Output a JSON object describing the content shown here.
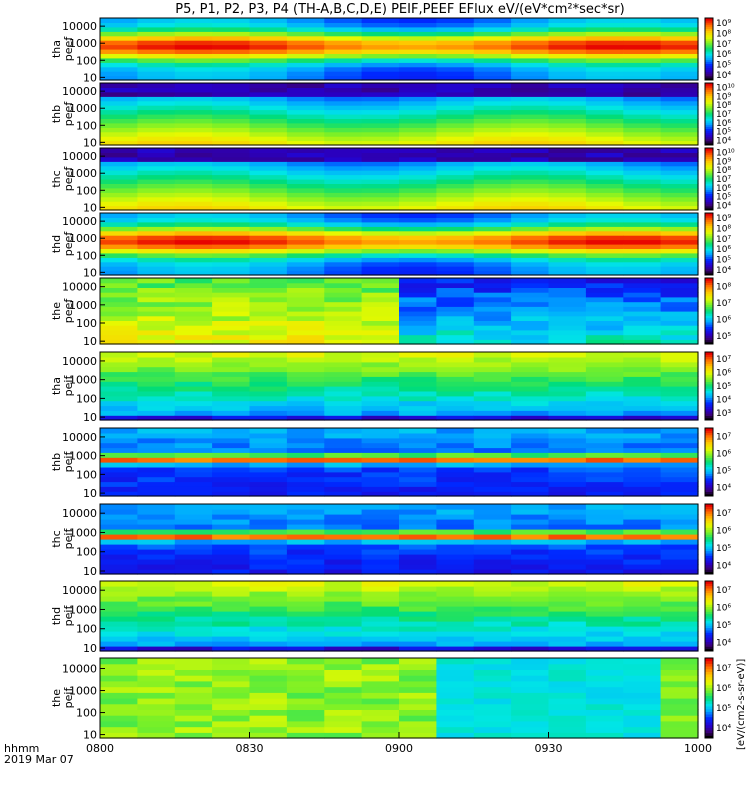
{
  "title": "P5, P1, P2, P3, P4 (TH-A,B,C,D,E) PEIF,PEEF EFlux eV/(eV*cm²*sec*sr)",
  "x_axis": {
    "label_line1": "hhmm",
    "label_line2": "2019 Mar 07",
    "ticks": [
      "0800",
      "0830",
      "0900",
      "0930",
      "1000"
    ]
  },
  "colorbar_label": "[eV/(cm2-s-sr-eV)]",
  "chart_data": [
    {
      "type": "heatmap",
      "ylabel": "tha\npeef",
      "yticks": [
        "10",
        "100",
        "1000",
        "10000"
      ],
      "ylim": [
        7,
        30000
      ],
      "y_scale": "log",
      "cbar_ticks": [
        "10⁴",
        "10⁵",
        "10⁶",
        "10⁷",
        "10⁸",
        "10⁹"
      ],
      "profile": "peef_hot",
      "values_note": "log10 EFlux"
    },
    {
      "type": "heatmap",
      "ylabel": "thb\npeef",
      "yticks": [
        "10",
        "100",
        "1000",
        "10000"
      ],
      "ylim": [
        7,
        30000
      ],
      "y_scale": "log",
      "cbar_ticks": [
        "10⁴",
        "10⁵",
        "10⁶",
        "10⁷",
        "10⁸",
        "10⁹",
        "10¹⁰"
      ],
      "profile": "peef_cold"
    },
    {
      "type": "heatmap",
      "ylabel": "thc\npeef",
      "yticks": [
        "10",
        "100",
        "1000",
        "10000"
      ],
      "ylim": [
        7,
        30000
      ],
      "y_scale": "log",
      "cbar_ticks": [
        "10⁴",
        "10⁵",
        "10⁶",
        "10⁷",
        "10⁸",
        "10⁹",
        "10¹⁰"
      ],
      "profile": "peef_cold"
    },
    {
      "type": "heatmap",
      "ylabel": "thd\npeef",
      "yticks": [
        "10",
        "100",
        "1000",
        "10000"
      ],
      "ylim": [
        7,
        30000
      ],
      "y_scale": "log",
      "cbar_ticks": [
        "10⁴",
        "10⁵",
        "10⁶",
        "10⁷",
        "10⁸",
        "10⁹"
      ],
      "profile": "peef_hot"
    },
    {
      "type": "heatmap",
      "ylabel": "the\npeef",
      "yticks": [
        "10",
        "100",
        "1000",
        "10000"
      ],
      "ylim": [
        7,
        30000
      ],
      "y_scale": "log",
      "cbar_ticks": [
        "10⁵",
        "10⁶",
        "10⁷",
        "10⁸"
      ],
      "profile": "peef_mixed"
    },
    {
      "type": "heatmap",
      "ylabel": "tha\npeif",
      "yticks": [
        "10",
        "100",
        "1000",
        "10000"
      ],
      "ylim": [
        7,
        30000
      ],
      "y_scale": "log",
      "cbar_ticks": [
        "10³",
        "10⁴",
        "10⁵",
        "10⁶",
        "10⁷"
      ],
      "profile": "peif_warm"
    },
    {
      "type": "heatmap",
      "ylabel": "thb\npeif",
      "yticks": [
        "10",
        "100",
        "1000",
        "10000"
      ],
      "ylim": [
        7,
        30000
      ],
      "y_scale": "log",
      "cbar_ticks": [
        "10⁴",
        "10⁵",
        "10⁶",
        "10⁷"
      ],
      "profile": "peif_band"
    },
    {
      "type": "heatmap",
      "ylabel": "thc\npeif",
      "yticks": [
        "10",
        "100",
        "1000",
        "10000"
      ],
      "ylim": [
        7,
        30000
      ],
      "y_scale": "log",
      "cbar_ticks": [
        "10⁴",
        "10⁵",
        "10⁶",
        "10⁷"
      ],
      "profile": "peif_band"
    },
    {
      "type": "heatmap",
      "ylabel": "thd\npeif",
      "yticks": [
        "10",
        "100",
        "1000",
        "10000"
      ],
      "ylim": [
        7,
        30000
      ],
      "y_scale": "log",
      "cbar_ticks": [
        "10⁴",
        "10⁵",
        "10⁶",
        "10⁷"
      ],
      "profile": "peif_warm"
    },
    {
      "type": "heatmap",
      "ylabel": "the\npeif",
      "yticks": [
        "10",
        "100",
        "1000",
        "10000"
      ],
      "ylim": [
        7,
        30000
      ],
      "y_scale": "log",
      "cbar_ticks": [
        "10⁴",
        "10⁵",
        "10⁶",
        "10⁷"
      ],
      "profile": "peif_the"
    }
  ]
}
